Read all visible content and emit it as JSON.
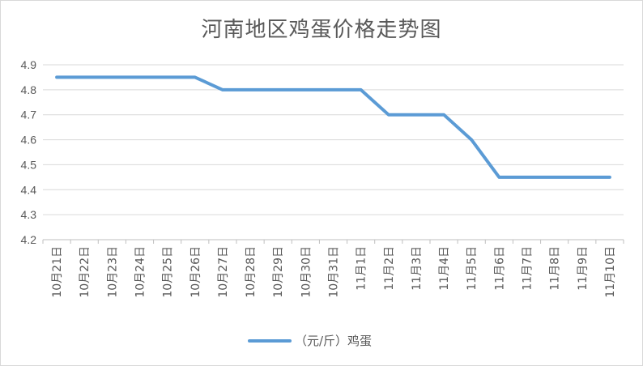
{
  "chart_data": {
    "type": "line",
    "title": "河南地区鸡蛋价格走势图",
    "xlabel": "",
    "ylabel": "",
    "categories": [
      "10月21日",
      "10月22日",
      "10月23日",
      "10月24日",
      "10月25日",
      "10月26日",
      "10月27日",
      "10月28日",
      "10月29日",
      "10月30日",
      "10月31日",
      "11月1日",
      "11月2日",
      "11月3日",
      "11月4日",
      "11月5日",
      "11月6日",
      "11月7日",
      "11月8日",
      "11月9日",
      "11月10日"
    ],
    "series": [
      {
        "name": "（元/斤）鸡蛋",
        "values": [
          4.85,
          4.85,
          4.85,
          4.85,
          4.85,
          4.85,
          4.8,
          4.8,
          4.8,
          4.8,
          4.8,
          4.8,
          4.7,
          4.7,
          4.7,
          4.6,
          4.45,
          4.45,
          4.45,
          4.45,
          4.45
        ]
      }
    ],
    "ylim": [
      4.2,
      4.9
    ],
    "yticks": [
      "4.2",
      "4.3",
      "4.4",
      "4.5",
      "4.6",
      "4.7",
      "4.8",
      "4.9"
    ],
    "grid": true,
    "legend": "bottom",
    "colors": {
      "series": "#5b9bd5",
      "grid": "#d9d9d9",
      "axis": "#bfbfbf",
      "text": "#595959"
    }
  }
}
